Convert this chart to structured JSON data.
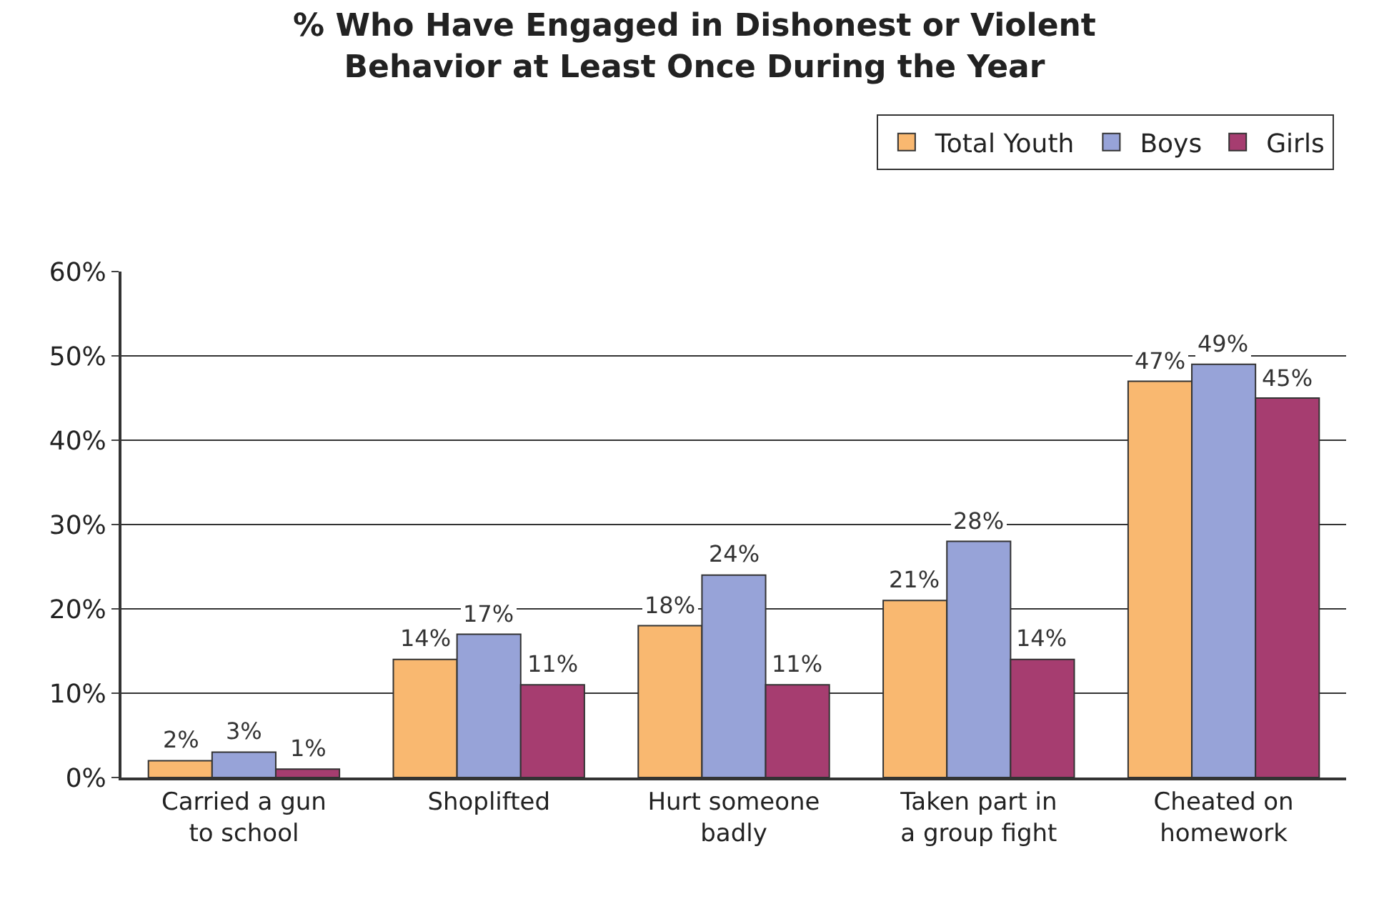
{
  "chart_data": {
    "type": "bar",
    "title": "% Who Have Engaged in Dishonest or Violent\nBehavior at Least Once During the Year",
    "categories": [
      "Carried a gun\nto school",
      "Shoplifted",
      "Hurt someone\nbadly",
      "Taken part in\na group fight",
      "Cheated on\nhomework"
    ],
    "series": [
      {
        "name": "Total Youth",
        "color": "#f9b870",
        "values": [
          2,
          14,
          18,
          21,
          47
        ],
        "value_labels": [
          "2%",
          "14%",
          "18%",
          "21%",
          "47%"
        ]
      },
      {
        "name": "Boys",
        "color": "#97a3d8",
        "values": [
          3,
          17,
          24,
          28,
          49
        ],
        "value_labels": [
          "3%",
          "17%",
          "24%",
          "28%",
          "49%"
        ]
      },
      {
        "name": "Girls",
        "color": "#a63d70",
        "values": [
          1,
          11,
          11,
          14,
          45
        ],
        "value_labels": [
          "1%",
          "11%",
          "11%",
          "14%",
          "45%"
        ]
      }
    ],
    "ylim": [
      0,
      60
    ],
    "yticks": [
      {
        "value": 0,
        "label": "0%"
      },
      {
        "value": 10,
        "label": "10%"
      },
      {
        "value": 20,
        "label": "20%"
      },
      {
        "value": 30,
        "label": "30%"
      },
      {
        "value": 40,
        "label": "40%"
      },
      {
        "value": 50,
        "label": "50%"
      },
      {
        "value": 60,
        "label": "60%"
      }
    ],
    "grid": "y",
    "legend": "top right"
  }
}
